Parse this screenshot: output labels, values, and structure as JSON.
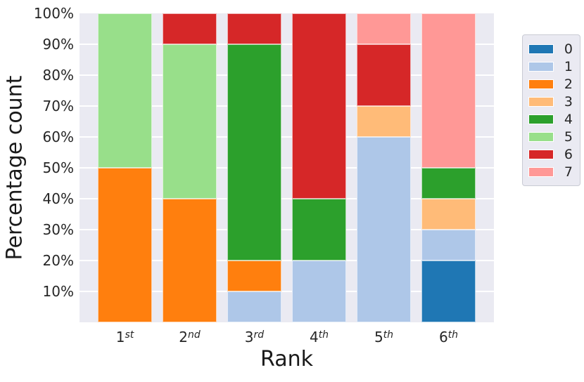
{
  "chart_data": {
    "type": "bar",
    "stacked": true,
    "units": "percent",
    "title": "",
    "xlabel": "Rank",
    "ylabel": "Percentage count",
    "ylim": [
      0,
      100
    ],
    "grid": "horizontal",
    "plot_bg": "#eaeaf2",
    "gridline_color": "#ffffff",
    "text_color": "#262626",
    "categories": [
      {
        "base": "1",
        "sup": "st"
      },
      {
        "base": "2",
        "sup": "nd"
      },
      {
        "base": "3",
        "sup": "rd"
      },
      {
        "base": "4",
        "sup": "th"
      },
      {
        "base": "5",
        "sup": "th"
      },
      {
        "base": "6",
        "sup": "th"
      }
    ],
    "series": [
      {
        "name": "0",
        "color": "#1f77b4",
        "values": [
          0,
          0,
          0,
          0,
          0,
          20
        ]
      },
      {
        "name": "1",
        "color": "#aec7e8",
        "values": [
          0,
          0,
          10,
          20,
          60,
          10
        ]
      },
      {
        "name": "2",
        "color": "#ff7f0e",
        "values": [
          50,
          40,
          10,
          0,
          0,
          0
        ]
      },
      {
        "name": "3",
        "color": "#ffbb78",
        "values": [
          0,
          0,
          0,
          0,
          10,
          10
        ]
      },
      {
        "name": "4",
        "color": "#2ca02c",
        "values": [
          0,
          0,
          70,
          20,
          0,
          10
        ]
      },
      {
        "name": "5",
        "color": "#98df8a",
        "values": [
          50,
          50,
          0,
          0,
          0,
          0
        ]
      },
      {
        "name": "6",
        "color": "#d62728",
        "values": [
          0,
          10,
          10,
          60,
          20,
          0
        ]
      },
      {
        "name": "7",
        "color": "#ff9896",
        "values": [
          0,
          0,
          0,
          0,
          10,
          50
        ]
      }
    ],
    "y_ticks": [
      {
        "value": 100,
        "label": "100%"
      },
      {
        "value": 90,
        "label": "90%"
      },
      {
        "value": 80,
        "label": "80%"
      },
      {
        "value": 70,
        "label": "70%"
      },
      {
        "value": 60,
        "label": "60%"
      },
      {
        "value": 50,
        "label": "50%"
      },
      {
        "value": 40,
        "label": "40%"
      },
      {
        "value": 30,
        "label": "30%"
      },
      {
        "value": 20,
        "label": "20%"
      },
      {
        "value": 10,
        "label": "10%"
      }
    ],
    "legend": {
      "position": "right-outside",
      "labels": [
        "0",
        "1",
        "2",
        "3",
        "4",
        "5",
        "6",
        "7"
      ]
    }
  }
}
